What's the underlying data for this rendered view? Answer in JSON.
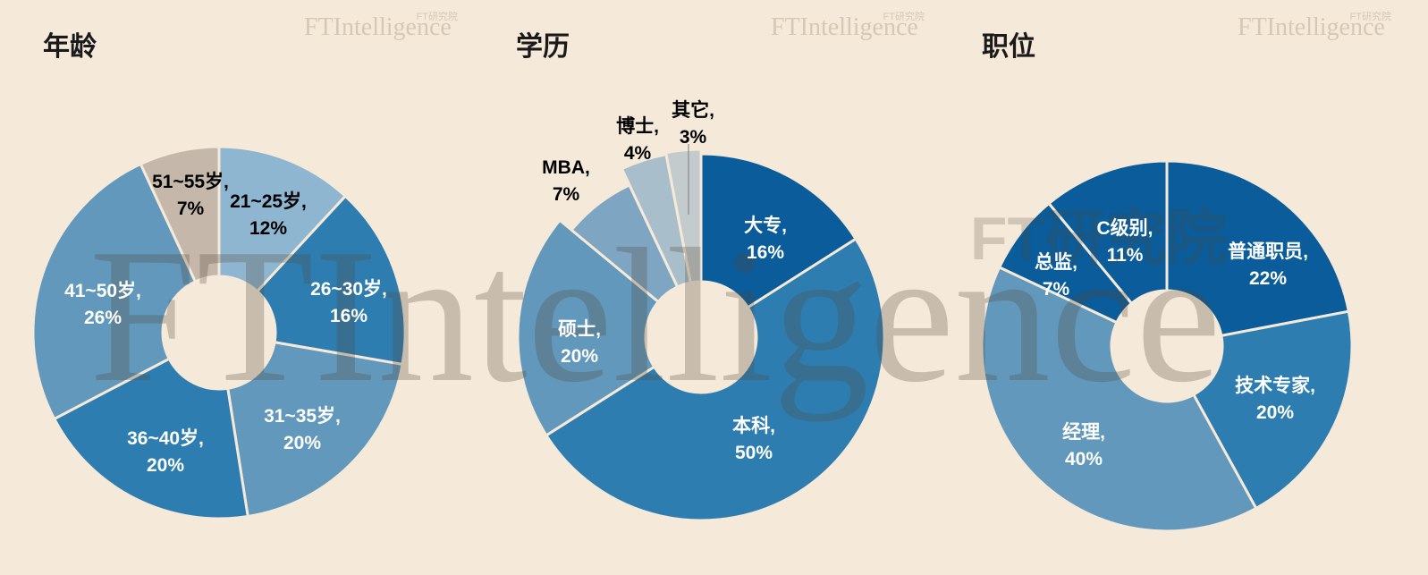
{
  "watermark": {
    "brand": "FTIntelligence",
    "brand_cn": "FT研究院",
    "big_brand": "FTIntelligence",
    "big_brand_cn": "FT研究院"
  },
  "colors": {
    "background": "#f5e9d9",
    "dark_blue": "#0a5c9a",
    "mid_blue": "#2e7db1",
    "light_blue": "#6198bb",
    "pale_blue": "#8fb6d1",
    "grey_blue": "#a8bfcb",
    "grey": "#c3cbcc",
    "taupe": "#c5b8aa"
  },
  "chart_data": [
    {
      "type": "pie",
      "title": "年龄",
      "categories": [
        "21~25岁",
        "26~30岁",
        "31~35岁",
        "36~40岁",
        "41~50岁",
        "51~55岁"
      ],
      "values": [
        12,
        16,
        20,
        20,
        26,
        7
      ],
      "label_texts": [
        [
          "21~25岁,",
          "12%"
        ],
        [
          "26~30岁,",
          "16%"
        ],
        [
          "31~35岁,",
          "20%"
        ],
        [
          "36~40岁,",
          "20%"
        ],
        [
          "41~50岁,",
          "26%"
        ],
        [
          "51~55岁,",
          "7%"
        ]
      ],
      "slice_colors": [
        "#8fb6d1",
        "#2e7db1",
        "#6198bb",
        "#2e7db1",
        "#6198bb",
        "#c5b8aa"
      ],
      "label_colors": [
        "#000000",
        "#ffffff",
        "#ffffff",
        "#ffffff",
        "#ffffff",
        "#000000"
      ]
    },
    {
      "type": "pie",
      "title": "学历",
      "categories": [
        "大专",
        "本科",
        "硕士",
        "MBA",
        "博士",
        "其它"
      ],
      "values": [
        16,
        50,
        20,
        7,
        4,
        3
      ],
      "label_texts": [
        [
          "大专,",
          "16%"
        ],
        [
          "本科,",
          "50%"
        ],
        [
          "硕士,",
          "20%"
        ],
        [
          "MBA,",
          "7%"
        ],
        [
          "博士,",
          "4%"
        ],
        [
          "其它,",
          "3%"
        ]
      ],
      "slice_colors": [
        "#0a5c9a",
        "#2e7db1",
        "#6198bb",
        "#7ea6c3",
        "#a8bfcb",
        "#c3cbcc"
      ],
      "label_colors": [
        "#ffffff",
        "#ffffff",
        "#ffffff",
        "#000000",
        "#000000",
        "#000000"
      ]
    },
    {
      "type": "pie",
      "title": "职位",
      "categories": [
        "普通职员",
        "技术专家",
        "经理",
        "总监",
        "C级别"
      ],
      "values": [
        22,
        20,
        40,
        7,
        11
      ],
      "label_texts": [
        [
          "普通职员,",
          "22%"
        ],
        [
          "技术专家,",
          "20%"
        ],
        [
          "经理,",
          "40%"
        ],
        [
          "总监,",
          "7%"
        ],
        [
          "C级别,",
          "11%"
        ]
      ],
      "slice_colors": [
        "#0a5c9a",
        "#2e7db1",
        "#6198bb",
        "#0a5c9a",
        "#0a5c9a"
      ],
      "label_colors": [
        "#ffffff",
        "#ffffff",
        "#ffffff",
        "#ffffff",
        "#ffffff"
      ]
    }
  ]
}
